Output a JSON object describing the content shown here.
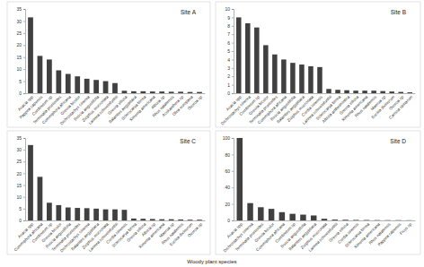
{
  "chart_data": [
    {
      "type": "bar",
      "title": "Site A",
      "categories": [
        "Acacia spp",
        "Pappea capensis",
        "Combretum sp",
        "Terminalia prunioides",
        "Commiphora africana",
        "Grewia bicolor",
        "Dichrostachys cinerea",
        "Boscia angustifolia",
        "Ziziphus mucronata",
        "Lannea schweinfurthii",
        "Grewia villosa",
        "Balanites aegyptiaca",
        "Sclerocarya birrea",
        "Ximenia americana",
        "Albizia sp",
        "Rhus natalensis",
        "Acokanthera sp",
        "Olea europaea",
        "Ozoroa sp"
      ],
      "values": [
        31.5,
        15.5,
        14,
        9.5,
        8,
        7,
        6,
        5.5,
        5,
        4.2,
        1,
        0.8,
        0.8,
        0.7,
        0.7,
        0.6,
        0.6,
        0.5,
        0.5
      ],
      "color": "#404040",
      "ylim": [
        0,
        35
      ],
      "yticks": [
        0,
        5,
        10,
        15,
        20,
        25,
        30,
        35
      ]
    },
    {
      "type": "bar",
      "title": "Site B",
      "categories": [
        "Acacia spp",
        "Dichrostachys cinerea",
        "Combretum sp",
        "Grewia bicolor",
        "Terminalia prunioides",
        "Commiphora africana",
        "Boscia angustifolia",
        "Balanites aegyptiaca",
        "Ziziphus mucronata",
        "Cordia sinensis",
        "Lannea schweinfurthii",
        "Sclerocarya birrea",
        "Albizia anthelmintica",
        "Grewia villosa",
        "Ximenia americana",
        "Rhus natalensis",
        "Maerua sp",
        "Euclea divinorum",
        "Ozoroa sp",
        "Carissa spinarum"
      ],
      "values": [
        9,
        8.3,
        7.8,
        5.7,
        4.6,
        4,
        3.6,
        3.4,
        3.2,
        3.1,
        0.5,
        0.4,
        0.35,
        0.3,
        0.3,
        0.3,
        0.25,
        0.2,
        0.15,
        0.1
      ],
      "color": "#404040",
      "ylim": [
        0,
        10
      ],
      "yticks": [
        0,
        1,
        2,
        3,
        4,
        5,
        6,
        7,
        8,
        9,
        10
      ]
    },
    {
      "type": "bar",
      "title": "Site C",
      "categories": [
        "Acacia spp",
        "Commiphora africana",
        "Combretum sp",
        "Grewia bicolor",
        "Boscia angustifolia",
        "Terminalia prunioides",
        "Dichrostachys cinerea",
        "Balanites aegyptiaca",
        "Ziziphus mucronata",
        "Lannea schweinfurthii",
        "Cordia sinensis",
        "Sclerocarya birrea",
        "Grewia villosa",
        "Albizia sp",
        "Ximenia americana",
        "Maerua sp",
        "Rhus natalensis",
        "Euclea divinorum",
        "Ozoroa sp"
      ],
      "values": [
        32,
        18.5,
        7.5,
        6.5,
        5.5,
        5.3,
        5.2,
        5,
        4.7,
        4.7,
        4.5,
        0.8,
        0.7,
        0.6,
        0.5,
        0.5,
        0.4,
        0.3,
        0.3
      ],
      "color": "#404040",
      "ylim": [
        0,
        35
      ],
      "yticks": [
        0,
        5,
        10,
        15,
        20,
        25,
        30,
        35
      ]
    },
    {
      "type": "bar",
      "title": "Site D",
      "categories": [
        "Acacia spp",
        "Dichrostachys cinerea",
        "Terminalia prunioides",
        "Grewia bicolor",
        "Commiphora africana",
        "Combretum sp",
        "Boscia angustifolia",
        "Balanites aegyptiaca",
        "Ziziphus mucronata",
        "Lannea schweinfurthii",
        "Grewia villosa",
        "Cordia sinensis",
        "Sclerocarya birrea",
        "Ximenia americana",
        "Rhus natalensis",
        "Pappea capensis",
        "Ficus sp"
      ],
      "values": [
        100,
        21,
        16,
        14,
        10,
        8,
        7,
        6,
        2,
        1,
        0.8,
        0.6,
        0.5,
        0.4,
        0.3,
        0.3,
        0.2
      ],
      "color": "#404040",
      "ylim": [
        0,
        100
      ],
      "yticks": [
        0,
        20,
        40,
        60,
        80,
        100
      ]
    }
  ],
  "xlabel": "Woody plant species"
}
